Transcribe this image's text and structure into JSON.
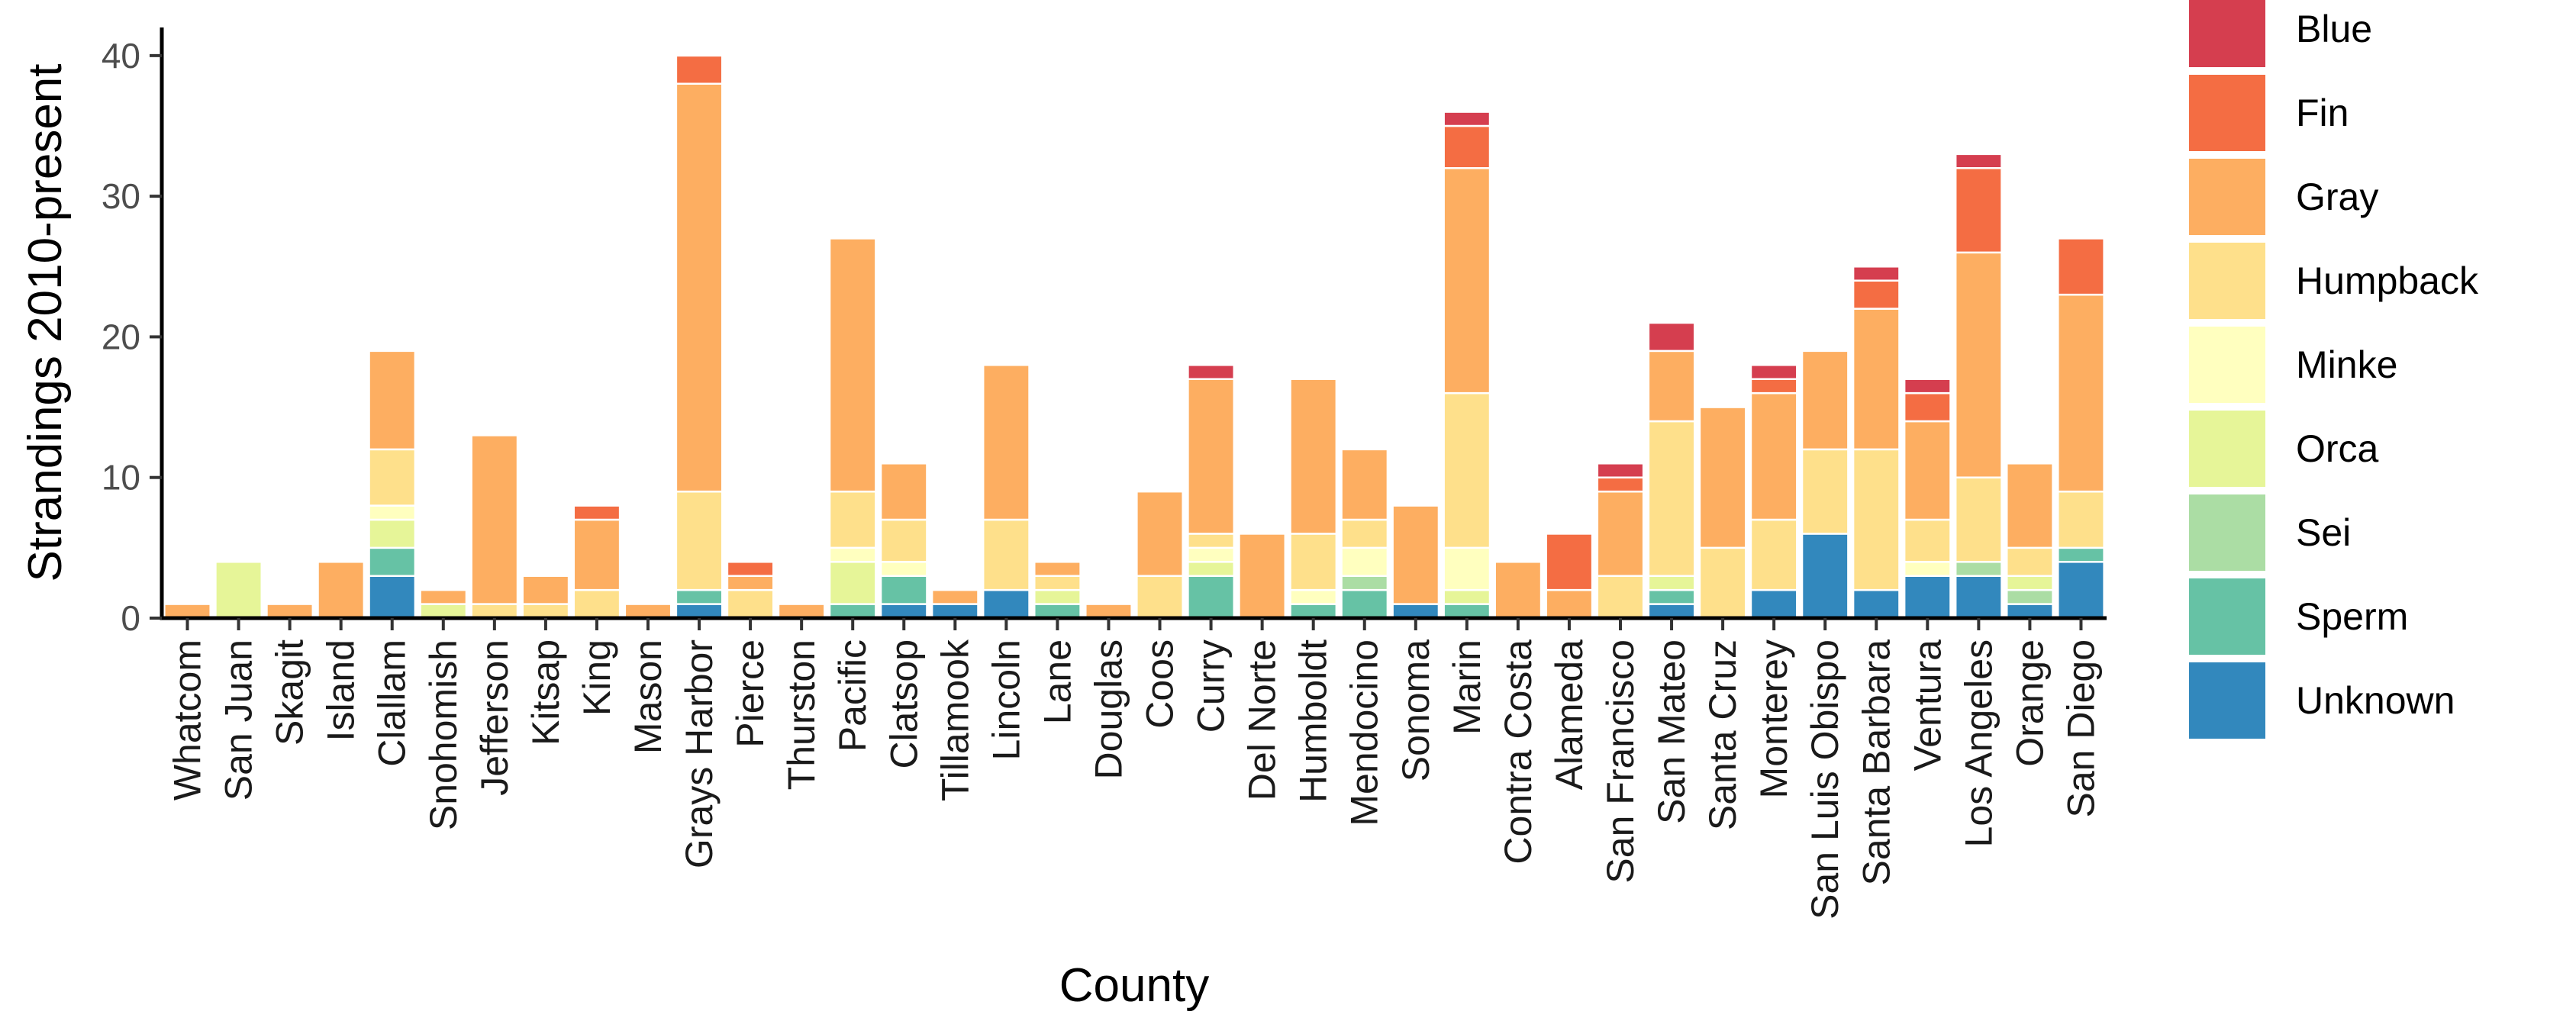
{
  "chart_data": {
    "type": "bar",
    "stacked": true,
    "xlabel": "County",
    "ylabel": "Strandings 2010-present",
    "ylim": [
      0,
      42
    ],
    "yticks": [
      0,
      10,
      20,
      30,
      40
    ],
    "grid": false,
    "legend_position": "right",
    "categories": [
      "Whatcom",
      "San Juan",
      "Skagit",
      "Island",
      "Clallam",
      "Snohomish",
      "Jefferson",
      "Kitsap",
      "King",
      "Mason",
      "Grays Harbor",
      "Pierce",
      "Thurston",
      "Pacific",
      "Clatsop",
      "Tillamook",
      "Lincoln",
      "Lane",
      "Douglas",
      "Coos",
      "Curry",
      "Del Norte",
      "Humboldt",
      "Mendocino",
      "Sonoma",
      "Marin",
      "Contra Costa",
      "Alameda",
      "San Francisco",
      "San Mateo",
      "Santa Cruz",
      "Monterey",
      "San Luis Obispo",
      "Santa Barbara",
      "Ventura",
      "Los Angeles",
      "Orange",
      "San Diego"
    ],
    "series": [
      {
        "name": "Blue",
        "color": "#D53E4F",
        "values": [
          0,
          0,
          0,
          0,
          0,
          0,
          0,
          0,
          0,
          0,
          0,
          0,
          0,
          0,
          0,
          0,
          0,
          0,
          0,
          0,
          1,
          0,
          0,
          0,
          0,
          1,
          0,
          0,
          1,
          2,
          0,
          1,
          0,
          1,
          1,
          1,
          0,
          0
        ]
      },
      {
        "name": "Fin",
        "color": "#F46D43",
        "values": [
          0,
          0,
          0,
          0,
          0,
          0,
          0,
          0,
          1,
          0,
          2,
          1,
          0,
          0,
          0,
          0,
          0,
          0,
          0,
          0,
          0,
          0,
          0,
          0,
          0,
          3,
          0,
          4,
          1,
          0,
          0,
          1,
          0,
          2,
          2,
          6,
          0,
          4
        ]
      },
      {
        "name": "Gray",
        "color": "#FDAE61",
        "values": [
          1,
          0,
          1,
          4,
          7,
          1,
          12,
          2,
          5,
          1,
          29,
          1,
          1,
          18,
          4,
          1,
          11,
          1,
          1,
          6,
          11,
          6,
          11,
          5,
          7,
          16,
          4,
          2,
          6,
          5,
          10,
          9,
          7,
          10,
          7,
          16,
          6,
          14
        ]
      },
      {
        "name": "Humpback",
        "color": "#FEE08B",
        "values": [
          0,
          0,
          0,
          0,
          4,
          0,
          1,
          1,
          2,
          0,
          7,
          2,
          0,
          4,
          3,
          0,
          5,
          1,
          0,
          3,
          1,
          0,
          4,
          2,
          0,
          11,
          0,
          0,
          3,
          11,
          5,
          5,
          6,
          10,
          3,
          6,
          2,
          4
        ]
      },
      {
        "name": "Minke",
        "color": "#FFFFBF",
        "values": [
          0,
          0,
          0,
          0,
          1,
          0,
          0,
          0,
          0,
          0,
          0,
          0,
          0,
          1,
          1,
          0,
          0,
          0,
          0,
          0,
          1,
          0,
          1,
          2,
          0,
          3,
          0,
          0,
          0,
          0,
          0,
          0,
          0,
          0,
          1,
          0,
          0,
          0
        ]
      },
      {
        "name": "Orca",
        "color": "#E6F598",
        "values": [
          0,
          4,
          0,
          0,
          2,
          1,
          0,
          0,
          0,
          0,
          0,
          0,
          0,
          3,
          0,
          0,
          0,
          1,
          0,
          0,
          1,
          0,
          0,
          0,
          0,
          1,
          0,
          0,
          0,
          1,
          0,
          0,
          0,
          0,
          0,
          0,
          1,
          0
        ]
      },
      {
        "name": "Sei",
        "color": "#ABDDA4",
        "values": [
          0,
          0,
          0,
          0,
          0,
          0,
          0,
          0,
          0,
          0,
          0,
          0,
          0,
          0,
          0,
          0,
          0,
          0,
          0,
          0,
          0,
          0,
          0,
          1,
          0,
          0,
          0,
          0,
          0,
          0,
          0,
          0,
          0,
          0,
          0,
          1,
          1,
          0
        ]
      },
      {
        "name": "Sperm",
        "color": "#66C2A5",
        "values": [
          0,
          0,
          0,
          0,
          2,
          0,
          0,
          0,
          0,
          0,
          1,
          0,
          0,
          1,
          2,
          0,
          0,
          1,
          0,
          0,
          3,
          0,
          1,
          2,
          0,
          1,
          0,
          0,
          0,
          1,
          0,
          0,
          0,
          0,
          0,
          0,
          0,
          1
        ]
      },
      {
        "name": "Unknown",
        "color": "#3288BD",
        "values": [
          0,
          0,
          0,
          0,
          3,
          0,
          0,
          0,
          0,
          0,
          1,
          0,
          0,
          0,
          1,
          1,
          2,
          0,
          0,
          0,
          0,
          0,
          0,
          0,
          1,
          0,
          0,
          0,
          0,
          1,
          0,
          2,
          6,
          2,
          3,
          3,
          1,
          4
        ]
      }
    ]
  }
}
